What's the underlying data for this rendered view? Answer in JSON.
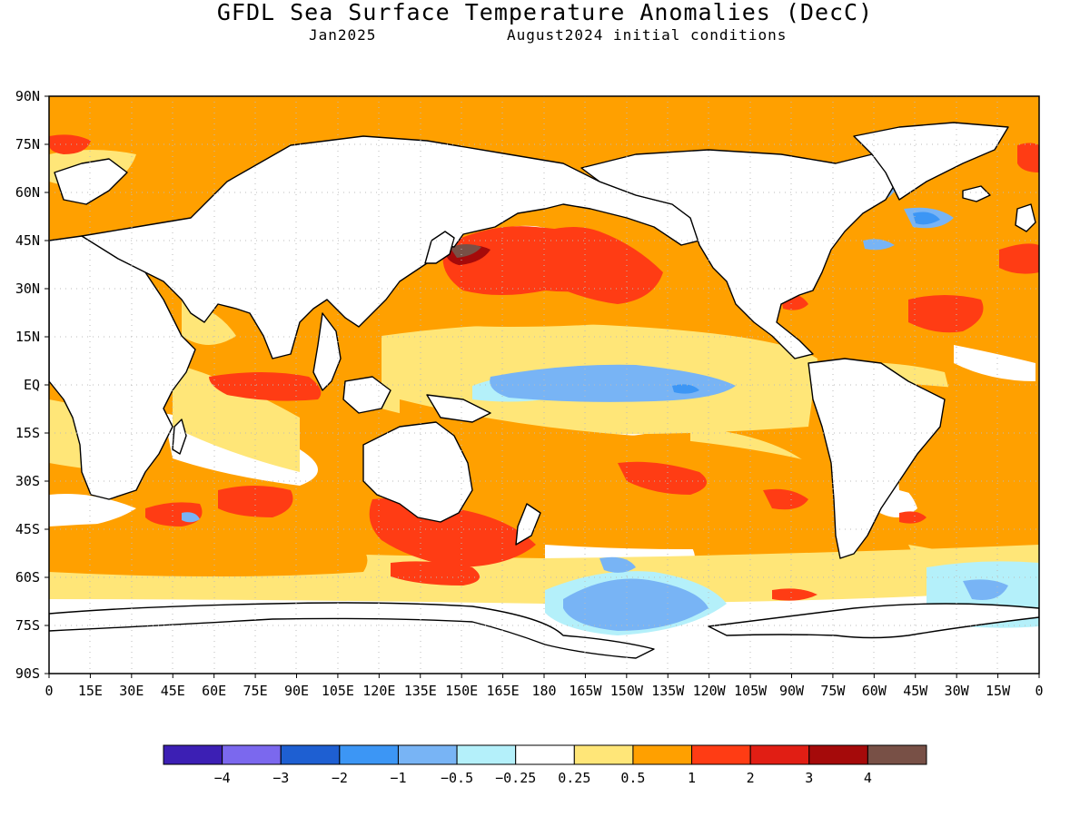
{
  "title": "GFDL Sea Surface Temperature Anomalies (DecC)",
  "subtitle_date": "Jan2025",
  "subtitle_init": "August2024 initial conditions",
  "lat_labels": [
    "90N",
    "75N",
    "60N",
    "45N",
    "30N",
    "15N",
    "EQ",
    "15S",
    "30S",
    "45S",
    "60S",
    "75S",
    "90S"
  ],
  "lon_labels": [
    "0",
    "15E",
    "30E",
    "45E",
    "60E",
    "75E",
    "90E",
    "105E",
    "120E",
    "135E",
    "150E",
    "165E",
    "180",
    "165W",
    "150W",
    "135W",
    "120W",
    "105W",
    "90W",
    "75W",
    "60W",
    "45W",
    "30W",
    "15W",
    "0"
  ],
  "colorbar": {
    "colors": [
      "#3c1fb4",
      "#7b68ee",
      "#1e5fd2",
      "#3c96f5",
      "#78b4f5",
      "#b4f0fa",
      "#ffffff",
      "#ffe678",
      "#ffa000",
      "#ff3c14",
      "#e11e14",
      "#a50a0a",
      "#785046"
    ],
    "labels": [
      "-4",
      "-3",
      "-2",
      "-1",
      "-0.5",
      "-0.25",
      "0.25",
      "0.5",
      "1",
      "2",
      "3",
      "4"
    ]
  },
  "palette": {
    "white": "#ffffff",
    "yellow": "#ffe678",
    "orange": "#ffa000",
    "red": "#ff3c14",
    "lightblue": "#b4f0fa",
    "blue": "#78b4f5",
    "darkred": "#a50a0a",
    "land": "#ffffff",
    "coast": "#000000"
  }
}
